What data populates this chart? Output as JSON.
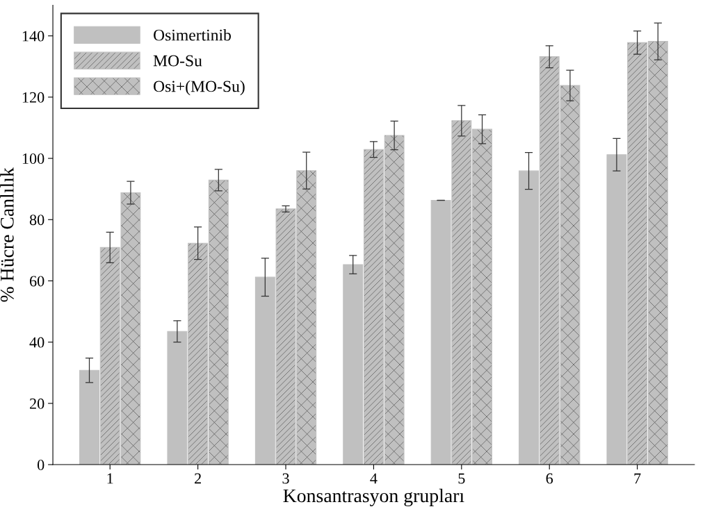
{
  "chart_data": {
    "type": "bar",
    "xlabel": "Konsantrasyon grupları",
    "ylabel": "% Hücre Canlılık",
    "categories": [
      "1",
      "2",
      "3",
      "4",
      "5",
      "6",
      "7"
    ],
    "series": [
      {
        "name": "Osimertinib",
        "color": "#c0c0c0",
        "values": [
          30.8,
          43.5,
          61.2,
          65.3,
          86.3,
          95.9,
          101.2
        ],
        "errors": [
          4,
          3.5,
          6.2,
          3,
          null,
          6,
          5.3
        ]
      },
      {
        "name": "MO-Su",
        "color": "#c0c0c0",
        "values": [
          70.9,
          72.3,
          83.5,
          102.9,
          112.3,
          133.2,
          137.8
        ],
        "errors": [
          5,
          5.3,
          1,
          2.6,
          5,
          3.6,
          3.8
        ]
      },
      {
        "name": "Osi+(MO-Su)",
        "color": "#c0c0c0",
        "values": [
          88.8,
          92.9,
          96,
          107.5,
          109.5,
          123.8,
          138.2
        ],
        "errors": [
          3.7,
          3.5,
          6,
          4.7,
          4.7,
          5,
          6
        ]
      }
    ],
    "ylim": [
      0,
      150
    ],
    "yticks": [
      0,
      20,
      40,
      60,
      80,
      100,
      120,
      140
    ],
    "legend": "top left",
    "grid": false
  }
}
